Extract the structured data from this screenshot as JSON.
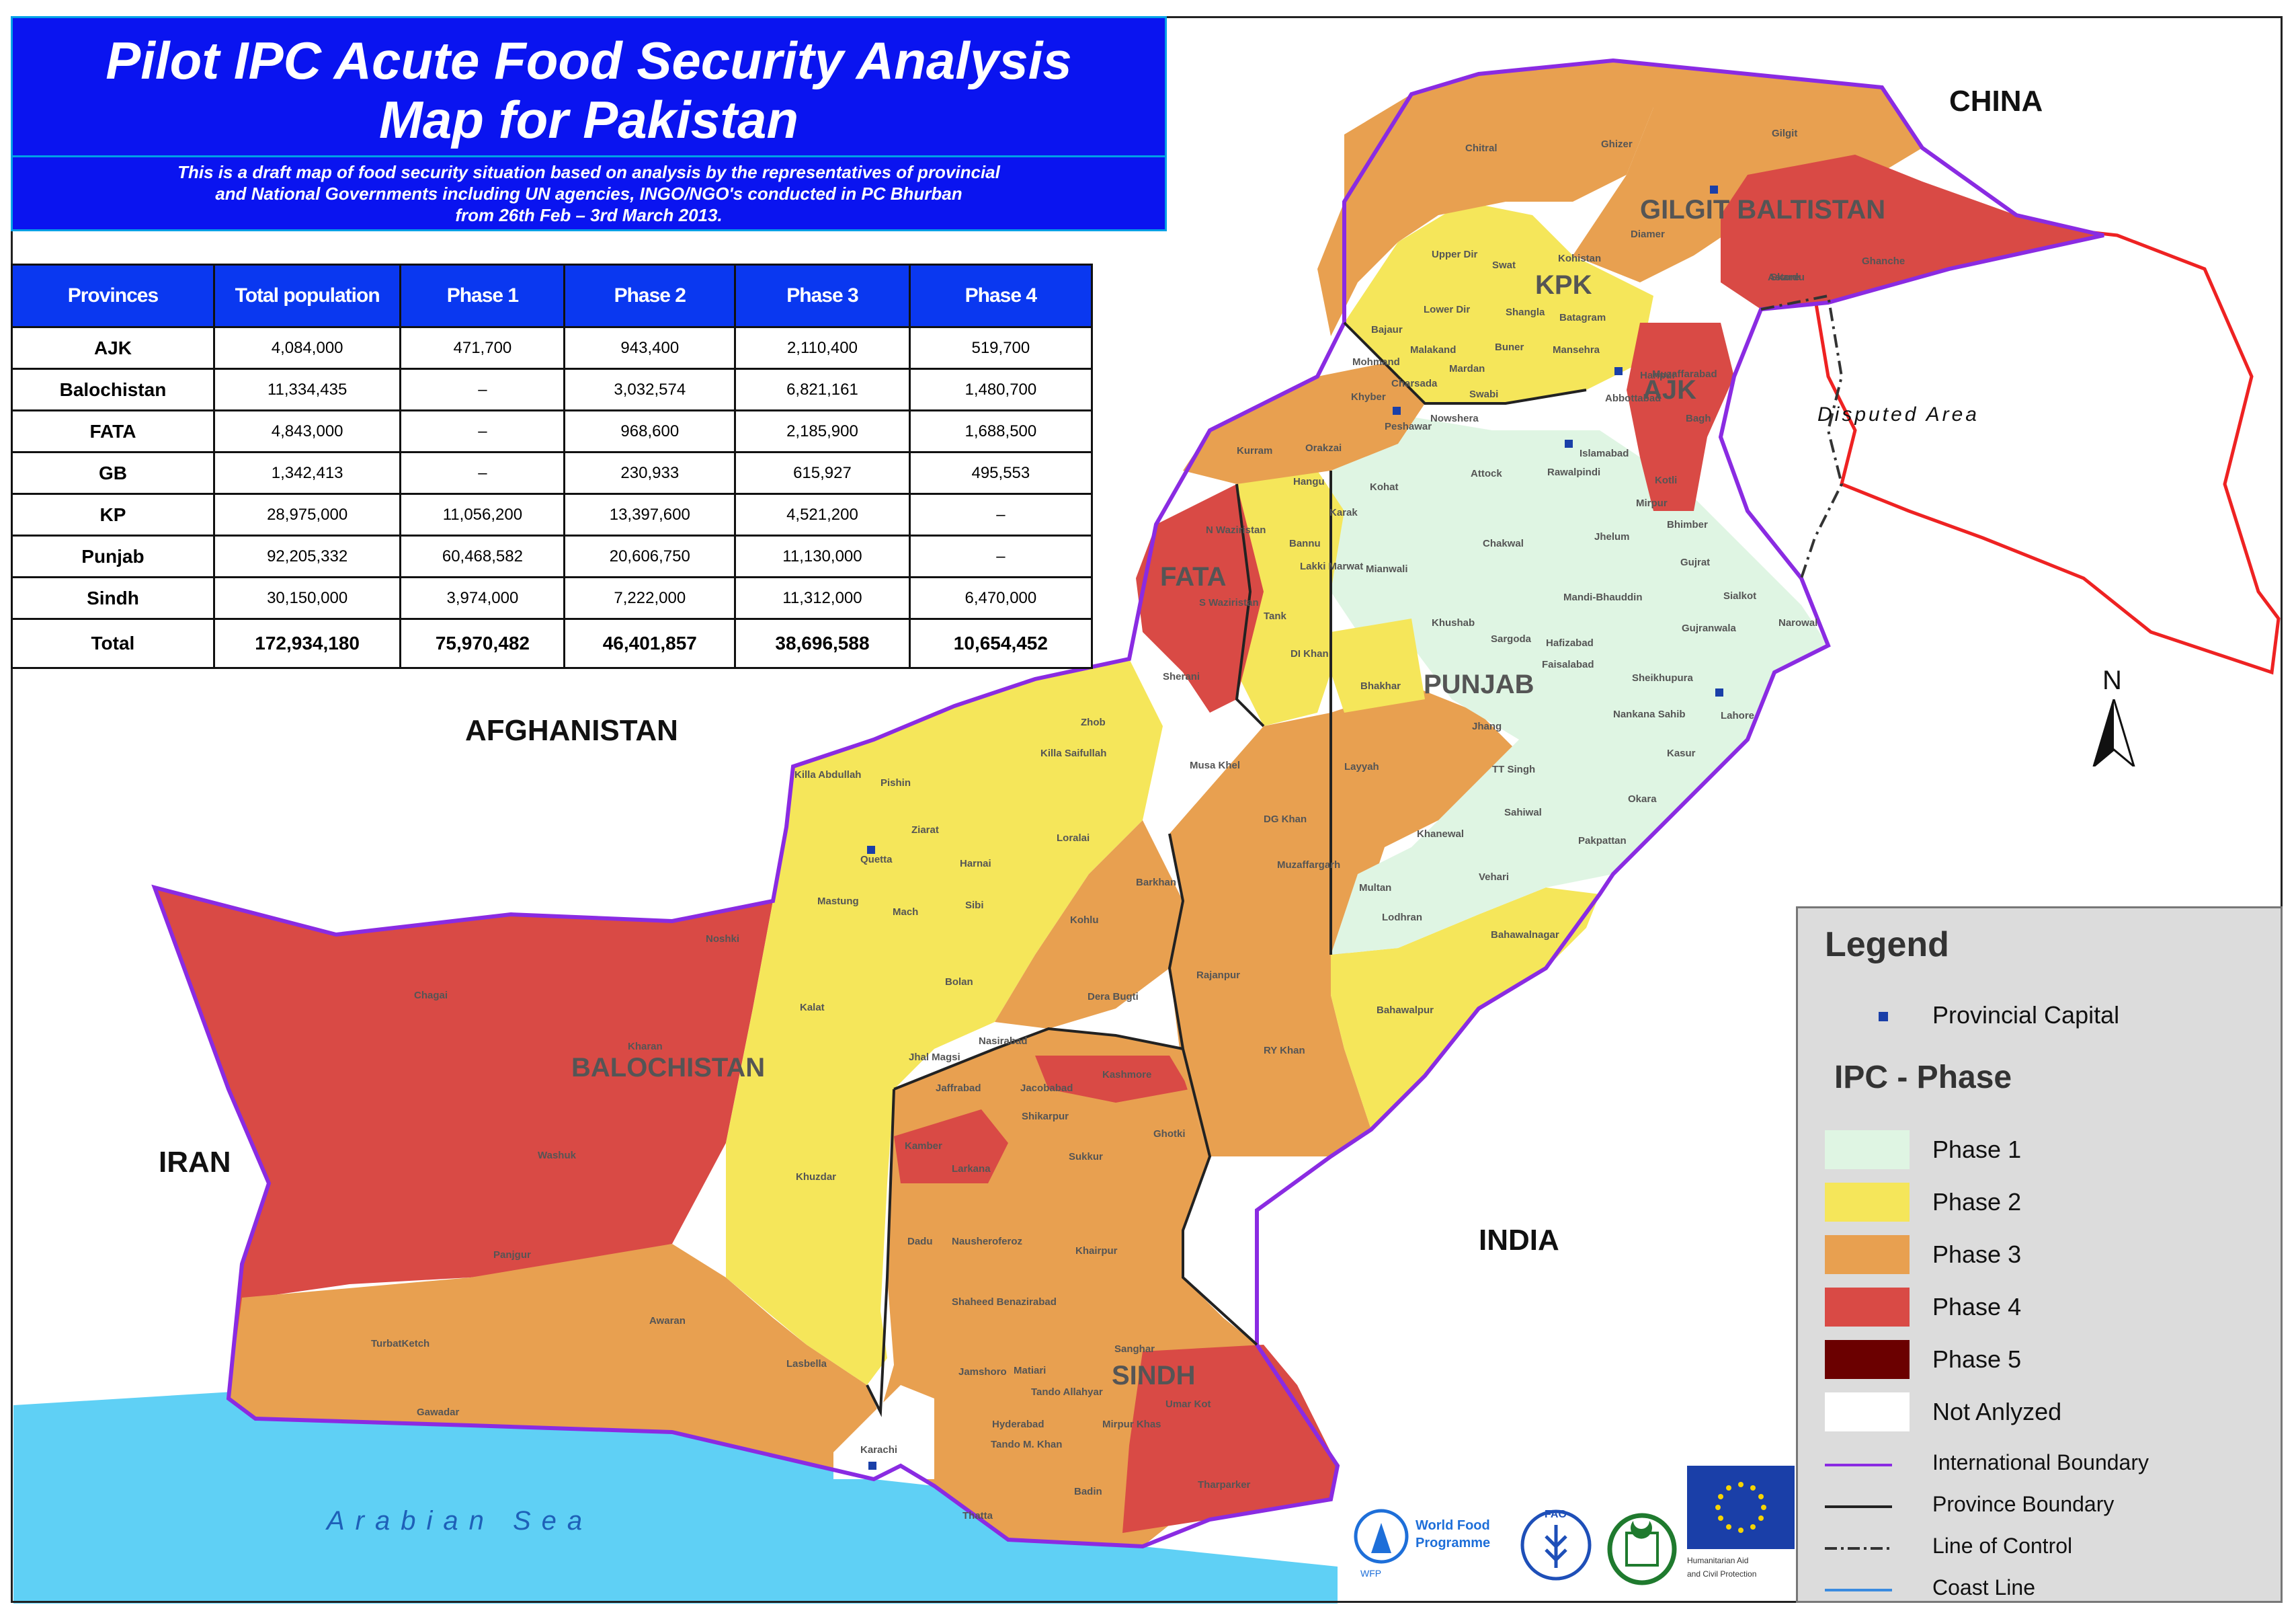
{
  "title": {
    "line1": "Pilot IPC Acute Food Security Analysis",
    "line2": "Map  for Pakistan"
  },
  "subtitle": {
    "line1": "This is a draft map of food security situation based on analysis by the representatives of provincial",
    "line2": "and National Governments including UN agencies, INGO/NGO's conducted in PC Bhurban",
    "line3": "from 26th Feb – 3rd March 2013."
  },
  "table": {
    "headers": [
      "Provinces",
      "Total population",
      "Phase 1",
      "Phase 2",
      "Phase 3",
      "Phase 4"
    ],
    "rows": [
      [
        "AJK",
        "4,084,000",
        "471,700",
        "943,400",
        "2,110,400",
        "519,700"
      ],
      [
        "Balochistan",
        "11,334,435",
        "–",
        "3,032,574",
        "6,821,161",
        "1,480,700"
      ],
      [
        "FATA",
        "4,843,000",
        "–",
        "968,600",
        "2,185,900",
        "1,688,500"
      ],
      [
        "GB",
        "1,342,413",
        "–",
        "230,933",
        "615,927",
        "495,553"
      ],
      [
        "KP",
        "28,975,000",
        "11,056,200",
        "13,397,600",
        "4,521,200",
        "–"
      ],
      [
        "Punjab",
        "92,205,332",
        "60,468,582",
        "20,606,750",
        "11,130,000",
        "–"
      ],
      [
        "Sindh",
        "30,150,000",
        "3,974,000",
        "7,222,000",
        "11,312,000",
        "6,470,000"
      ]
    ],
    "total": [
      "Total",
      "172,934,180",
      "75,970,482",
      "46,401,857",
      "38,696,588",
      "10,654,452"
    ]
  },
  "map_labels": {
    "china": "CHINA",
    "afghanistan": "AFGHANISTAN",
    "iran": "IRAN",
    "india": "INDIA",
    "sea": "Arabian Sea",
    "disputed": "Disputed Area",
    "gilgit": "GILGIT BALTISTAN",
    "kpk": "KPK",
    "ajk": "AJK",
    "fata": "FATA",
    "punjab": "PUNJAB",
    "balochistan": "BALOCHISTAN",
    "sindh": "SINDH"
  },
  "districts": [
    "Chitral",
    "Ghizer",
    "Gilgit",
    "Diamer",
    "Skardu",
    "Ghanche",
    "Astore",
    "Upper Dir",
    "Swat",
    "Kohistan",
    "Lower Dir",
    "Shangla",
    "Batagram",
    "Bajaur",
    "Malakand",
    "Buner",
    "Mansehra",
    "Mohmand",
    "Mardan",
    "Charsada",
    "Khyber",
    "Swabi",
    "Abbottabad",
    "Haripur",
    "Muzaffarabad",
    "Bagh",
    "Peshawar",
    "Nowshera",
    "Kurram",
    "Orakzai",
    "Islamabad",
    "Rawalpindi",
    "Kotli",
    "Mirpur",
    "Hangu",
    "Kohat",
    "Attock",
    "Karak",
    "Chakwal",
    "Jhelum",
    "Bhimber",
    "Gujrat",
    "N Waziristan",
    "Bannu",
    "Lakki Marwat",
    "Mianwali",
    "Mandi-Bhauddin",
    "Sialkot",
    "Narowal",
    "Gujranwala",
    "S Waziristan",
    "Tank",
    "Khushab",
    "Sargoda",
    "Hafizabad",
    "Faisalabad",
    "Sheikhupura",
    "DI Khan",
    "Sherani",
    "Bhakhar",
    "Jhang",
    "Nankana Sahib",
    "Lahore",
    "Kasur",
    "Zhob",
    "Killa Saifullah",
    "Killa Abdullah",
    "Pishin",
    "Musa Khel",
    "Layyah",
    "TT Singh",
    "Ziarat",
    "Quetta",
    "Harnai",
    "Loralai",
    "Sahiwal",
    "Okara",
    "DG Khan",
    "Khanewal",
    "Pakpattan",
    "Mastung",
    "Mach",
    "Sibi",
    "Kohlu",
    "Barkhan",
    "Muzaffargarh",
    "Multan",
    "Vehari",
    "Lodhran",
    "Bahawalnagar",
    "Chagai",
    "Noshki",
    "Bolan",
    "Dera Bugti",
    "Rajanpur",
    "Kalat",
    "Bahawalpur",
    "Kharan",
    "Jhal Magsi",
    "Nasirabad",
    "RY Khan",
    "Jaffrabad",
    "Jacobabad",
    "Kashmore",
    "Shikarpur",
    "Washuk",
    "Khuzdar",
    "Kamber",
    "Larkana",
    "Sukkur",
    "Ghotki",
    "Panjgur",
    "Dadu",
    "Nausheroferoz",
    "Khairpur",
    "Shaheed Benazirabad",
    "Awaran",
    "TurbatKetch",
    "Lasbella",
    "Jamshoro",
    "Matiari",
    "Sanghar",
    "Gawadar",
    "Tando Allahyar",
    "Umar Kot",
    "Hyderabad",
    "Mirpur Khas",
    "Karachi",
    "Tando M. Khan",
    "Badin",
    "Thatta",
    "Tharparker"
  ],
  "legend": {
    "title": "Legend",
    "capital_label": "Provincial Capital",
    "ipc_title": "IPC - Phase",
    "phases": [
      {
        "label": "Phase 1",
        "color": "#dff5e3"
      },
      {
        "label": "Phase 2",
        "color": "#f5e65a"
      },
      {
        "label": "Phase 3",
        "color": "#e8a050"
      },
      {
        "label": "Phase 4",
        "color": "#d94a45"
      },
      {
        "label": "Phase  5",
        "color": "#6b0000"
      },
      {
        "label": "Not Anlyzed",
        "color": "#ffffff"
      }
    ],
    "lines": [
      {
        "label": "International Boundary",
        "color": "#8a2be2",
        "style": "solid"
      },
      {
        "label": "Province Boundary",
        "color": "#222222",
        "style": "solid"
      },
      {
        "label": "Line of Control",
        "color": "#333333",
        "style": "dashdot"
      },
      {
        "label": "Coast Line",
        "color": "#3a8be0",
        "style": "solid"
      }
    ]
  },
  "north_label": "N",
  "logos": {
    "wfp_text_1": "World Food",
    "wfp_text_2": "Programme",
    "wfp_small": "WFP",
    "fao_text": "FAO",
    "echo_text_1": "Humanitarian Aid",
    "echo_text_2": "and Civil Protection"
  },
  "colors": {
    "title_bg": "#0a14f0",
    "header_bg": "#0a38f0",
    "sea": "#5fd0f5",
    "disputed_border": "#ee2222"
  }
}
